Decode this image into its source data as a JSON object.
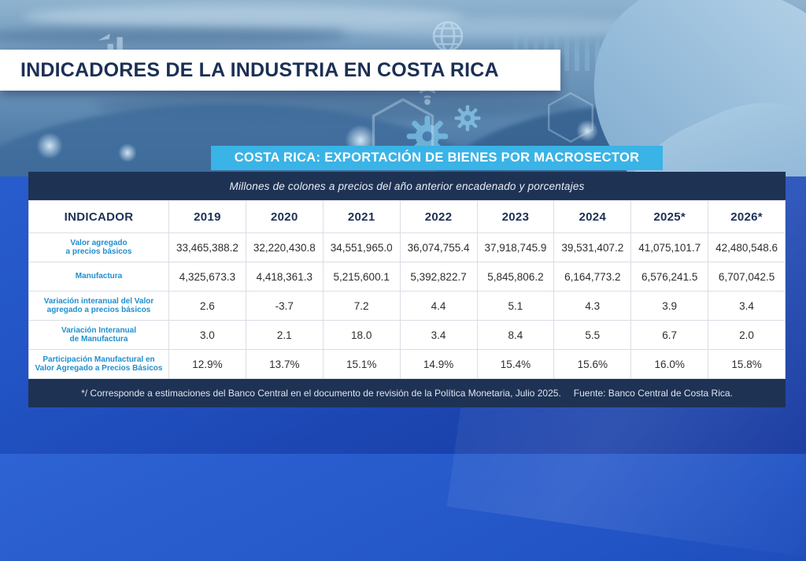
{
  "colors": {
    "accent_blue": "#3ab3e6",
    "navy_bar": "#1e3254",
    "royal_blue": "#2254c5",
    "label_blue": "#1f8fce",
    "title_navy": "#1c2f55"
  },
  "header": {
    "title": "INDICADORES DE LA INDUSTRIA EN COSTA RICA"
  },
  "banner": {
    "label": "COSTA RICA: EXPORTACIÓN DE BIENES POR MACROSECTOR"
  },
  "table": {
    "units_note": "Millones de colones a precios del año anterior encadenado y porcentajes",
    "header": [
      "INDICADOR",
      "2019",
      "2020",
      "2021",
      "2022",
      "2023",
      "2024",
      "2025*",
      "2026*"
    ],
    "rows": [
      {
        "label": "Valor agregado\na precios básicos",
        "values": [
          "33,465,388.2",
          "32,220,430.8",
          "34,551,965.0",
          "36,074,755.4",
          "37,918,745.9",
          "39,531,407.2",
          "41,075,101.7",
          "42,480,548.6"
        ]
      },
      {
        "label": "Manufactura",
        "values": [
          "4,325,673.3",
          "4,418,361.3",
          "5,215,600.1",
          "5,392,822.7",
          "5,845,806.2",
          "6,164,773.2",
          "6,576,241.5",
          "6,707,042.5"
        ]
      },
      {
        "label": "Variación interanual del Valor\nagregado a precios básicos",
        "values": [
          "2.6",
          "-3.7",
          "7.2",
          "4.4",
          "5.1",
          "4.3",
          "3.9",
          "3.4"
        ]
      },
      {
        "label": "Variación Interanual\nde Manufactura",
        "values": [
          "3.0",
          "2.1",
          "18.0",
          "3.4",
          "8.4",
          "5.5",
          "6.7",
          "2.0"
        ]
      },
      {
        "label": "Participación Manufactural en\nValor Agregado a Precios Básicos",
        "values": [
          "12.9%",
          "13.7%",
          "15.1%",
          "14.9%",
          "15.4%",
          "15.6%",
          "16.0%",
          "15.8%"
        ]
      }
    ],
    "footnote": "*/ Corresponde a estimaciones del Banco Central en el documento de revisión de la Política Monetaria, Julio 2025.",
    "source": "Fuente: Banco Central de Costa Rica."
  },
  "decor_icons": [
    "globe-icon",
    "gear-icon",
    "wifi-icon",
    "hexagon-icon",
    "bar-chart-icon",
    "city-skyline"
  ],
  "chart_data": {
    "type": "table",
    "title": "COSTA RICA: EXPORTACIÓN DE BIENES POR MACROSECTOR",
    "subtitle": "INDICADORES DE LA INDUSTRIA EN COSTA RICA",
    "units": "Millones de colones a precios del año anterior encadenado y porcentajes",
    "categories": [
      "2019",
      "2020",
      "2021",
      "2022",
      "2023",
      "2024",
      "2025*",
      "2026*"
    ],
    "series": [
      {
        "name": "Valor agregado a precios básicos",
        "values": [
          33465388.2,
          32220430.8,
          34551965.0,
          36074755.4,
          37918745.9,
          39531407.2,
          41075101.7,
          42480548.6
        ]
      },
      {
        "name": "Manufactura",
        "values": [
          4325673.3,
          4418361.3,
          5215600.1,
          5392822.7,
          5845806.2,
          6164773.2,
          6576241.5,
          6707042.5
        ]
      },
      {
        "name": "Variación interanual del Valor agregado a precios básicos",
        "values": [
          2.6,
          -3.7,
          7.2,
          4.4,
          5.1,
          4.3,
          3.9,
          3.4
        ]
      },
      {
        "name": "Variación Interanual de Manufactura",
        "values": [
          3.0,
          2.1,
          18.0,
          3.4,
          8.4,
          5.5,
          6.7,
          2.0
        ]
      },
      {
        "name": "Participación Manufactural en Valor Agregado a Precios Básicos (%)",
        "values": [
          12.9,
          13.7,
          15.1,
          14.9,
          15.4,
          15.6,
          16.0,
          15.8
        ]
      }
    ],
    "footnote": "*/ Corresponde a estimaciones del Banco Central en el documento de revisión de la Política Monetaria, Julio 2025.",
    "source": "Fuente: Banco Central de Costa Rica."
  }
}
